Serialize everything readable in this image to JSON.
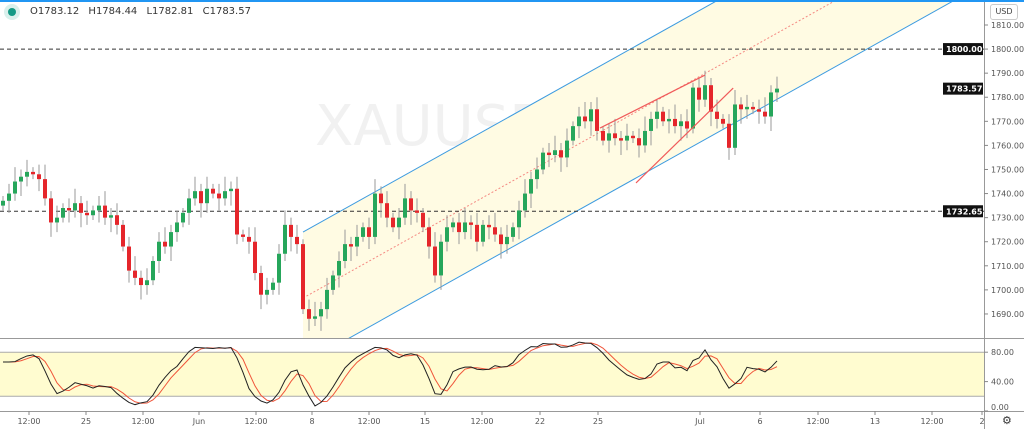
{
  "symbol_watermark": "XAUUSD",
  "legend": {
    "open": "O1783.12",
    "high": "H1784.44",
    "low": "L1782.81",
    "close": "C1783.57"
  },
  "currency_button": "USD",
  "settings_icon": "gear-icon",
  "colors": {
    "up": "#26a65b",
    "down": "#e5262b",
    "channel": "#3d9be0",
    "channel_fill": "#fffbe3",
    "trendline": "#f05a5a",
    "stoch_k": "#222222",
    "stoch_d": "#f0553a",
    "stoch_band": "#fffcd0",
    "accent": "#2196f3"
  },
  "chart_data": {
    "type": "candlestick",
    "ylim": [
      1683,
      1815
    ],
    "price_ticks": [
      "1810.00",
      "1800.00",
      "1790.00",
      "1780.00",
      "1770.00",
      "1760.00",
      "1750.00",
      "1740.00",
      "1730.00",
      "1720.00",
      "1710.00",
      "1700.00",
      "1690.00"
    ],
    "price_badges": [
      {
        "label": "1800.00",
        "value": 1800
      },
      {
        "label": "1783.57",
        "value": 1783.57
      },
      {
        "label": "1732.65",
        "value": 1732.65
      }
    ],
    "horizontal_lines": [
      1800,
      1732.65
    ],
    "first_open": 1735,
    "close": [
      1737,
      1740,
      1745,
      1747,
      1749,
      1748,
      1746,
      1738,
      1728,
      1730,
      1734,
      1733,
      1736,
      1732,
      1731,
      1733,
      1735,
      1730,
      1731,
      1727,
      1718,
      1708,
      1705,
      1702,
      1704,
      1712,
      1720,
      1718,
      1724,
      1728,
      1732,
      1738,
      1741,
      1736,
      1742,
      1740,
      1738,
      1741,
      1742,
      1723,
      1722,
      1720,
      1707,
      1698,
      1700,
      1703,
      1715,
      1727,
      1722,
      1719,
      1692,
      1688,
      1689,
      1692,
      1700,
      1706,
      1712,
      1719,
      1718,
      1722,
      1726,
      1722,
      1740,
      1736,
      1730,
      1726,
      1730,
      1738,
      1733,
      1732,
      1726,
      1718,
      1706,
      1720,
      1726,
      1728,
      1724,
      1728,
      1727,
      1720,
      1727,
      1726,
      1723,
      1719,
      1722,
      1726,
      1733,
      1740,
      1746,
      1750,
      1757,
      1756,
      1758,
      1755,
      1762,
      1768,
      1772,
      1770,
      1775,
      1766,
      1762,
      1765,
      1763,
      1762,
      1764,
      1763,
      1760,
      1766,
      1771,
      1774,
      1770,
      1771,
      1768,
      1770,
      1767,
      1784,
      1779,
      1785,
      1774,
      1771,
      1769,
      1759,
      1777,
      1775,
      1776,
      1775,
      1774,
      1772,
      1782,
      1783.57
    ],
    "channel": {
      "upper": [
        [
          50,
          1724
        ],
        [
          120,
          1821.5
        ]
      ],
      "lower": [
        [
          57,
          1679
        ],
        [
          190,
          1864
        ]
      ],
      "middle": [
        [
          50,
          1696.6
        ],
        [
          130,
          1808
        ]
      ]
    },
    "trendlines": [
      [
        [
          99.5,
          1767.2
        ],
        [
          117,
          1789.2
        ]
      ],
      [
        [
          105.5,
          1744.4
        ],
        [
          121.7,
          1783.8
        ]
      ]
    ],
    "time_ticks": [
      "12:00",
      "25",
      "12:00",
      "Jun",
      "12:00",
      "8",
      "12:00",
      "15",
      "12:00",
      "22",
      "25",
      "Jul",
      "6",
      "12:00",
      "13",
      "12:00",
      "2"
    ],
    "oscillator": {
      "type": "stochastic",
      "ticks": [
        "80.00",
        "40.00",
        "0.00"
      ],
      "band": [
        20,
        80
      ],
      "ylim": [
        0,
        100
      ]
    }
  }
}
